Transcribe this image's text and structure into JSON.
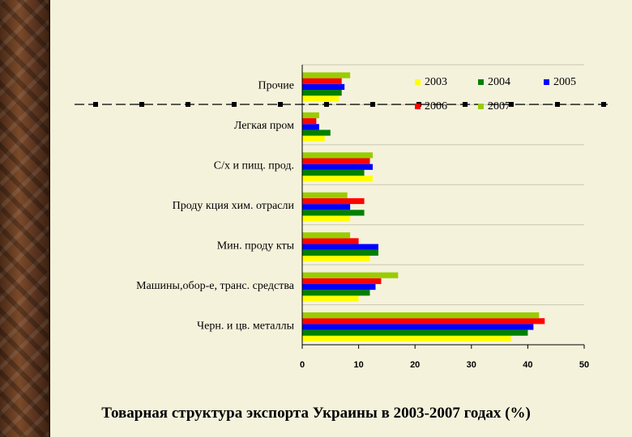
{
  "caption": "Товарная структура экспорта Украины в 2003-2007 годах (%)",
  "chart_data": {
    "type": "bar",
    "orientation": "horizontal",
    "categories": [
      "Прочие",
      "Легкая пром",
      "С/х и пищ. прод.",
      "Проду кция хим. отрасли",
      "Мин. проду кты",
      "Машины,обор-е, транс. средства",
      "Черн. и цв. металлы"
    ],
    "series": [
      {
        "name": "2003",
        "color": "#ffff00",
        "values": [
          6.5,
          4.0,
          12.5,
          8.5,
          12.0,
          10.0,
          37.0
        ]
      },
      {
        "name": "2004",
        "color": "#008000",
        "values": [
          7.0,
          5.0,
          11.0,
          11.0,
          13.5,
          12.0,
          40.0
        ]
      },
      {
        "name": "2005",
        "color": "#0000ff",
        "values": [
          7.5,
          3.0,
          12.5,
          8.5,
          13.5,
          13.0,
          41.0
        ]
      },
      {
        "name": "2006",
        "color": "#ff0000",
        "values": [
          7.0,
          2.5,
          12.0,
          11.0,
          10.0,
          14.0,
          43.0
        ]
      },
      {
        "name": "2007",
        "color": "#99cc00",
        "values": [
          8.5,
          3.0,
          12.5,
          8.0,
          8.5,
          17.0,
          42.0
        ]
      }
    ],
    "xlim": [
      0,
      50
    ],
    "xticks": [
      "0",
      "10",
      "20",
      "30",
      "40",
      "50"
    ],
    "grid": true,
    "legend_position": "top-right"
  }
}
